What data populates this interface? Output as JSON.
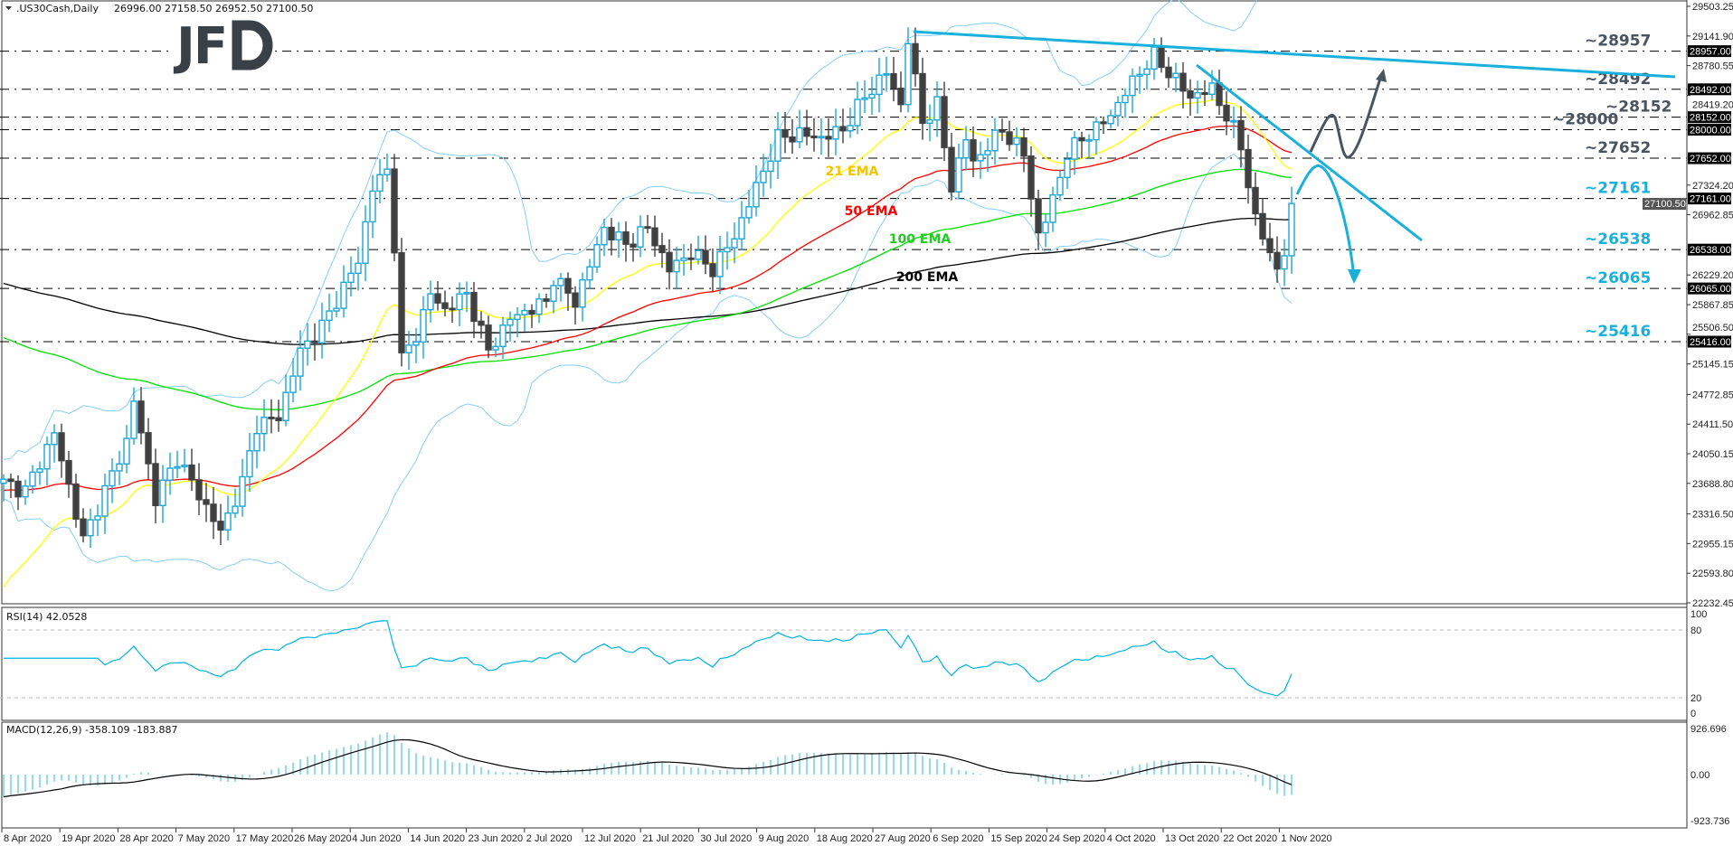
{
  "header": {
    "symbol": ".US30Cash,Daily",
    "ohlc": "26996.00 27158.50 26952.50 27100.50",
    "logo_text": "JFD"
  },
  "price_axis": {
    "ticks": [
      "29503.25",
      "29141.90",
      "28780.55",
      "28419.20",
      "27324.20",
      "26962.85",
      "26229.20",
      "25867.85",
      "25506.50",
      "25145.15",
      "24772.85",
      "24411.50",
      "24050.15",
      "23688.80",
      "23316.50",
      "22955.15",
      "22593.80",
      "22232.45"
    ],
    "current_price": "27100.50"
  },
  "levels": [
    {
      "value": 28957,
      "label": "~28957",
      "box": "28957.00",
      "color": "#4a5360"
    },
    {
      "value": 28492,
      "label": "~28492",
      "box": "28492.00",
      "color": "#4a5360"
    },
    {
      "value": 28152,
      "label": "~28152",
      "box": "28152.00",
      "color": "#4a5360"
    },
    {
      "value": 28000,
      "label": "~28000",
      "box": "28000.00",
      "color": "#4a5360"
    },
    {
      "value": 27652,
      "label": "~27652",
      "box": "27652.00",
      "color": "#4a5360"
    },
    {
      "value": 27161,
      "label": "~27161",
      "box": "27161.00",
      "color": "#1ab0dc"
    },
    {
      "value": 26538,
      "label": "~26538",
      "box": "26538.00",
      "color": "#1ab0dc"
    },
    {
      "value": 26065,
      "label": "~26065",
      "box": "26065.00",
      "color": "#1ab0dc"
    },
    {
      "value": 25416,
      "label": "~25416",
      "box": "25416.00",
      "color": "#1ab0dc"
    }
  ],
  "ema_labels": {
    "ema21": {
      "text": "21 EMA",
      "color": "#f5c400"
    },
    "ema50": {
      "text": "50 EMA",
      "color": "#ff0000"
    },
    "ema100": {
      "text": "100 EMA",
      "color": "#22cc22"
    },
    "ema200": {
      "text": "200 EMA",
      "color": "#000000"
    }
  },
  "rsi": {
    "label": "RSI(14) 42.0528",
    "ticks": [
      "100",
      "80",
      "20",
      "0"
    ]
  },
  "macd": {
    "label": "MACD(12,26,9) -358.109 -183.887",
    "ticks": [
      "926.696",
      "0.00",
      "-923.736"
    ]
  },
  "date_axis": [
    "8 Apr 2020",
    "19 Apr 2020",
    "28 Apr 2020",
    "7 May 2020",
    "17 May 2020",
    "26 May 2020",
    "4 Jun 2020",
    "14 Jun 2020",
    "23 Jun 2020",
    "2 Jul 2020",
    "12 Jul 2020",
    "21 Jul 2020",
    "30 Jul 2020",
    "9 Aug 2020",
    "18 Aug 2020",
    "27 Aug 2020",
    "6 Sep 2020",
    "15 Sep 2020",
    "24 Sep 2020",
    "4 Oct 2020",
    "13 Oct 2020",
    "22 Oct 2020",
    "1 Nov 2020"
  ],
  "chart_data": {
    "type": "candlestick",
    "title": ".US30Cash,Daily",
    "ylim": [
      22232.45,
      29503.25
    ],
    "bars": 179,
    "key_closes": [
      [
        0,
        23700
      ],
      [
        3,
        23600
      ],
      [
        7,
        24300
      ],
      [
        11,
        23000
      ],
      [
        17,
        24200
      ],
      [
        18,
        24700
      ],
      [
        21,
        23500
      ],
      [
        24,
        24000
      ],
      [
        30,
        23100
      ],
      [
        33,
        23700
      ],
      [
        35,
        24400
      ],
      [
        38,
        24500
      ],
      [
        41,
        25300
      ],
      [
        44,
        25600
      ],
      [
        49,
        26400
      ],
      [
        51,
        27300
      ],
      [
        53,
        27500
      ],
      [
        54,
        26600
      ],
      [
        55,
        25200
      ],
      [
        57,
        25500
      ],
      [
        59,
        26000
      ],
      [
        61,
        25800
      ],
      [
        64,
        26000
      ],
      [
        67,
        25300
      ],
      [
        70,
        25700
      ],
      [
        75,
        25900
      ],
      [
        76,
        26200
      ],
      [
        79,
        25900
      ],
      [
        83,
        26800
      ],
      [
        86,
        26600
      ],
      [
        89,
        26800
      ],
      [
        92,
        26300
      ],
      [
        95,
        26500
      ],
      [
        98,
        26300
      ],
      [
        101,
        26700
      ],
      [
        104,
        27300
      ],
      [
        107,
        27900
      ],
      [
        110,
        27950
      ],
      [
        113,
        27900
      ],
      [
        116,
        28000
      ],
      [
        119,
        28400
      ],
      [
        122,
        28700
      ],
      [
        124,
        28300
      ],
      [
        125,
        29100
      ],
      [
        127,
        28100
      ],
      [
        129,
        28300
      ],
      [
        131,
        27300
      ],
      [
        133,
        27900
      ],
      [
        134,
        27600
      ],
      [
        138,
        28000
      ],
      [
        141,
        27700
      ],
      [
        143,
        26700
      ],
      [
        144,
        26900
      ],
      [
        147,
        27700
      ],
      [
        149,
        27900
      ],
      [
        151,
        28000
      ],
      [
        154,
        28300
      ],
      [
        156,
        28600
      ],
      [
        159,
        28900
      ],
      [
        161,
        28700
      ],
      [
        164,
        28400
      ],
      [
        167,
        28500
      ],
      [
        170,
        28000
      ],
      [
        171,
        27800
      ],
      [
        173,
        26900
      ],
      [
        176,
        26300
      ],
      [
        177,
        26500
      ],
      [
        178,
        27100
      ]
    ],
    "indicators": [
      "EMA 21",
      "EMA 50",
      "EMA 100",
      "EMA 200",
      "Bollinger Bands",
      "RSI(14)",
      "MACD(12,26,9)"
    ],
    "colors": {
      "bull": "#1ea6d6",
      "bear": "#404040",
      "bollinger": "#87cefa",
      "ema21": "#ffff00",
      "ema50": "#ff0000",
      "ema100": "#00e000",
      "ema200": "#000000",
      "trendline": "#1ab0dc",
      "scenario_up": "#4a5360",
      "scenario_down": "#1ab0dc"
    }
  }
}
